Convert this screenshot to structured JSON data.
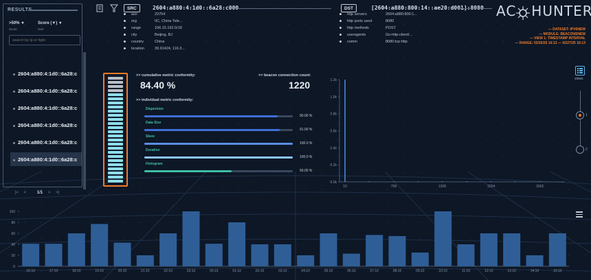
{
  "results": {
    "title": "RESULTS",
    "filter_value": ">50%",
    "filter_label": "Score",
    "sort_value": "Score (▼)",
    "sort_label": "Sort",
    "search_placeholder": "search by ip or fqdn",
    "items": [
      "2604:a880:4:1d0::6a28:c",
      "2604:a880:4:1d0::6a28:c",
      "2604:a880:4:1d0::6a28:c",
      "2604:a880:4:1d0::6a28:c",
      "2604:a880:4:1d0::6a28:c",
      "2604:a880:4:1d0::6a28:c"
    ],
    "active_index": 5,
    "page": "1/1",
    "first": "|<",
    "prev": "<",
    "next": ">",
    "last": ">|"
  },
  "src": {
    "label": "SRC",
    "ip": "2604:a880:4:1d0::6a28:c000",
    "fields": [
      {
        "k": "asn",
        "v": "23754"
      },
      {
        "k": "org",
        "v": "IIC, China Tele..."
      },
      {
        "k": "range",
        "v": "106.15.192.0/18"
      },
      {
        "k": "city",
        "v": "Beijing, BJ"
      },
      {
        "k": "country",
        "v": "China"
      },
      {
        "k": "location",
        "v": "39.91424, 116.3..."
      }
    ]
  },
  "dst": {
    "label": "DST",
    "ip": "[2604:a880:800:14::ae20:d001]:8080",
    "fields": [
      {
        "k": "http servers",
        "v": "2604:a880:800:1..."
      },
      {
        "k": "http ports used",
        "v": "8080"
      },
      {
        "k": "http methods",
        "v": "POST"
      },
      {
        "k": "useragents",
        "v": "Go-http-client/..."
      },
      {
        "k": "comm",
        "v": "8080:tcp:http"
      }
    ]
  },
  "logo": {
    "left": "AC",
    "right": "HUNTER"
  },
  "info": [
    "— DATASET: IPV6NEW",
    "— MODULE: BEACONSNEW",
    "— VIEW 1: TIMESTAMP INTERVAL",
    "— RANGE: 02/26/25 16:13 — 02/27/25 16:13"
  ],
  "metrics": {
    "cumulative_label": ">> cumulative metric conformity:",
    "cumulative_value": "84.40 %",
    "beacon_label": ">> beacon connection count:",
    "beacon_value": "1220",
    "individual_label": ">> individual metric conformity:",
    "meter_fraction": 0.844,
    "items": [
      {
        "name": "Dispersion",
        "value": "90.00 %",
        "fraction": 0.9,
        "color": "#3f6fd6"
      },
      {
        "name": "Data Size",
        "value": "91.00 %",
        "fraction": 0.91,
        "color": "#3f6fd6"
      },
      {
        "name": "Skew",
        "value": "100.0 %",
        "fraction": 1.0,
        "color": "#5b8fe2"
      },
      {
        "name": "Duration",
        "value": "100.0 %",
        "fraction": 1.0,
        "color": "#8dc4f0"
      },
      {
        "name": "Histogram",
        "value": "59.00 %",
        "fraction": 0.59,
        "color": "#3fbfa6"
      }
    ]
  },
  "views": {
    "label": "views",
    "knob1": "1",
    "knob2": "2"
  },
  "chart_data": [
    {
      "type": "bar",
      "title": "",
      "ylim": [
        0,
        1.2
      ],
      "yticks": [
        "0.0k",
        "0.2k",
        "0.4k",
        "0.6k",
        "0.8k",
        "1.0k",
        "1.2k"
      ],
      "xticks": [
        "10",
        "758",
        "1505",
        "2254",
        "3002"
      ],
      "xlim": [
        10,
        3300
      ],
      "points": [
        {
          "x": 10,
          "y": 1.2
        },
        {
          "x": 380,
          "y": 0.004
        },
        {
          "x": 760,
          "y": 0.003
        },
        {
          "x": 1130,
          "y": 0.004
        },
        {
          "x": 1500,
          "y": 0.003
        },
        {
          "x": 1880,
          "y": 0.004
        },
        {
          "x": 2250,
          "y": 0.003
        },
        {
          "x": 2620,
          "y": 0.004
        },
        {
          "x": 3000,
          "y": 0.003
        }
      ]
    },
    {
      "type": "bar",
      "title": "",
      "ylim": [
        0,
        100
      ],
      "yticks": [
        "0",
        "20",
        "40",
        "60",
        "80",
        "100"
      ],
      "categories": [
        "16:10",
        "17:10",
        "18:10",
        "19:10",
        "20:10",
        "21:10",
        "22:10",
        "23:10",
        "00:10",
        "01:10",
        "02:10",
        "03:10",
        "04:10",
        "05:10",
        "06:10",
        "07:10",
        "08:10",
        "09:10",
        "10:10",
        "11:10",
        "12:10",
        "13:10",
        "14:10",
        "15:10"
      ],
      "labels": [
        "16:10",
        "17:10",
        "18:10",
        "19:10",
        "20:10",
        "21:10",
        "22:10",
        "23:10",
        "00:10",
        "01:10",
        "02:10",
        "03:10",
        "04:10",
        "05:10",
        "06:10",
        "07:10",
        "08:10",
        "09:10",
        "10:10",
        "11:10",
        "12:10",
        "13:10",
        "14:10",
        "15:10"
      ],
      "values": [
        41,
        41,
        60,
        77,
        43,
        20,
        60,
        100,
        41,
        80,
        40,
        40,
        20,
        60,
        23,
        57,
        55,
        25,
        100,
        40,
        60,
        60,
        20,
        60
      ]
    }
  ]
}
